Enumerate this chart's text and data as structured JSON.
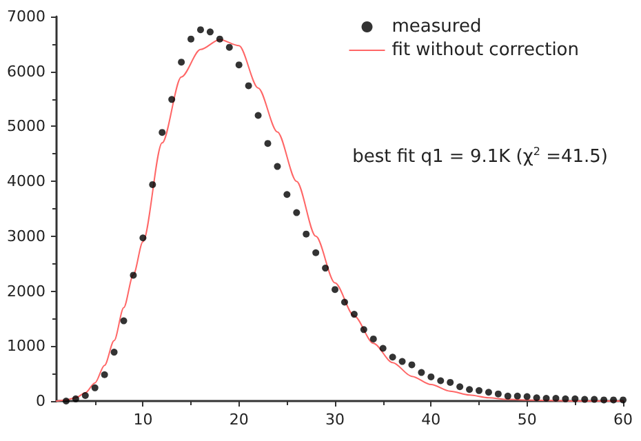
{
  "chart_data": {
    "type": "scatter",
    "legend": "top right",
    "grid": false,
    "xlim": [
      1,
      60
    ],
    "xticks": [
      10,
      20,
      30,
      40,
      50,
      60
    ],
    "ylim": [
      0,
      7000
    ],
    "yticks": [
      0,
      1000,
      2000,
      3000,
      4000,
      5000,
      6000,
      7000
    ],
    "annotations": [
      "best fit q1 = 9.1K (χ$^{2}$ =41.5)"
    ],
    "series": [
      {
        "name": "measured",
        "marker": "circle",
        "color": "#000000",
        "x": [
          2,
          3,
          4,
          5,
          6,
          7,
          8,
          9,
          10,
          11,
          12,
          13,
          14,
          15,
          16,
          17,
          18,
          19,
          20,
          21,
          22,
          23,
          24,
          25,
          26,
          27,
          28,
          29,
          30,
          31,
          32,
          33,
          34,
          35,
          36,
          37,
          38,
          39,
          40,
          41,
          42,
          43,
          44,
          45,
          46,
          47,
          48,
          49,
          50,
          51,
          52,
          53,
          54,
          55,
          56,
          57,
          58,
          59,
          60
        ],
        "values": [
          0,
          40,
          100,
          240,
          480,
          890,
          1460,
          2290,
          2970,
          3940,
          4890,
          5490,
          6170,
          6590,
          6760,
          6720,
          6590,
          6440,
          6120,
          5740,
          5200,
          4690,
          4270,
          3760,
          3430,
          3040,
          2700,
          2420,
          2030,
          1800,
          1580,
          1300,
          1130,
          960,
          800,
          720,
          660,
          520,
          440,
          370,
          340,
          260,
          210,
          190,
          160,
          130,
          90,
          90,
          80,
          60,
          50,
          50,
          40,
          40,
          30,
          30,
          20,
          20,
          20
        ]
      },
      {
        "name": "fit without correction",
        "type": "line",
        "marker": "none",
        "line_style": "solid",
        "color": "#ff6666",
        "x": [
          1,
          2,
          3,
          4,
          5,
          6,
          7,
          8,
          9,
          10,
          12,
          14,
          16,
          18,
          20,
          22,
          24,
          26,
          28,
          30,
          32,
          34,
          36,
          38,
          40,
          42,
          44,
          46,
          48,
          50,
          55,
          60
        ],
        "values": [
          0,
          20,
          60,
          150,
          330,
          650,
          1100,
          1700,
          2300,
          2900,
          4700,
          5900,
          6400,
          6580,
          6470,
          5700,
          4900,
          4000,
          3000,
          2150,
          1550,
          1050,
          700,
          450,
          300,
          180,
          110,
          60,
          30,
          20,
          0,
          0
        ]
      }
    ]
  }
}
